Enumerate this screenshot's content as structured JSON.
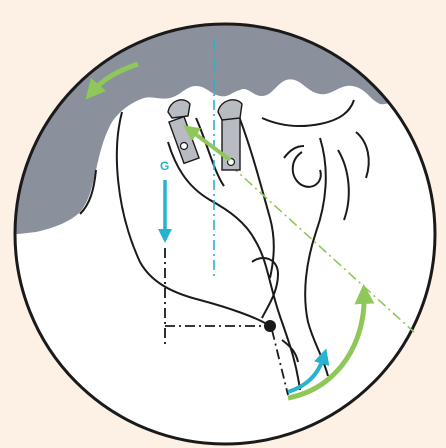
{
  "labels": {
    "gravity": "G"
  },
  "colors": {
    "background": "#fdf0e4",
    "skull": "#8a909c",
    "outline": "#1a1a1a",
    "gravity_arrow": "#27b3cf",
    "rotation_arrow": "#8fc75a",
    "axis_line": "#27b3cf",
    "diagonal_line": "#8fc75a",
    "guide_block": "#b8bbc2"
  },
  "icons": {
    "rotate_left": "curved-arrow-left-icon",
    "rotate_up": "curved-arrow-up-icon",
    "gravity": "arrow-down-icon"
  }
}
